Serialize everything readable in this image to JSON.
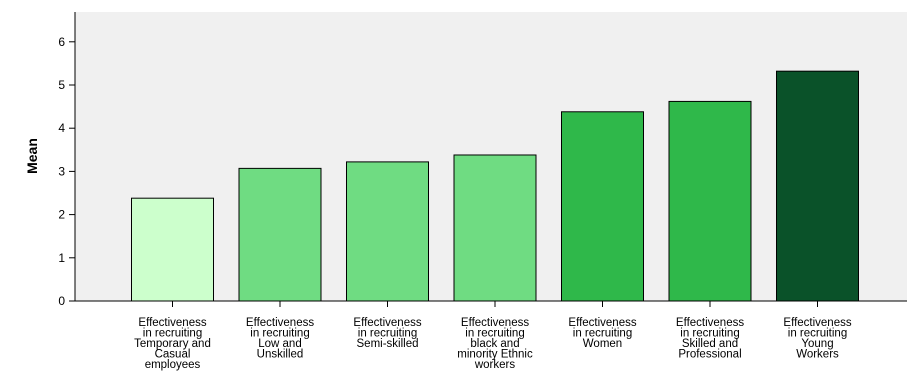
{
  "chart_data": {
    "type": "bar",
    "ylabel": "Mean",
    "xlabel": "",
    "ylim": [
      0,
      6.5
    ],
    "yticks": [
      0,
      1,
      2,
      3,
      4,
      5,
      6
    ],
    "grid": false,
    "plot_background": "#f0f0f0",
    "bar_stroke": "#000000",
    "categories": [
      "Effectiveness in recruiting Temporary and Casual employees",
      "Effectiveness in recruiting Low and Unskilled",
      "Effectiveness in recruiting Semi-skilled",
      "Effectiveness in recruiting black and minority Ethnic workers",
      "Effectiveness in recruiting Women",
      "Effectiveness in recruiting Skilled and Professional",
      "Effectiveness in recruiting Young Workers"
    ],
    "category_label_lines": [
      [
        "Effectiveness",
        "in recruiting",
        "Temporary and",
        "Casual",
        "employees"
      ],
      [
        "Effectiveness",
        "in recruiting",
        "Low and",
        "Unskilled"
      ],
      [
        "Effectiveness",
        "in recruiting",
        "Semi-skilled"
      ],
      [
        "Effectiveness",
        "in recruiting",
        "black and",
        "minority Ethnic",
        "workers"
      ],
      [
        "Effectiveness",
        "in recruiting",
        "Women"
      ],
      [
        "Effectiveness",
        "in recruiting",
        "Skilled and",
        "Professional"
      ],
      [
        "Effectiveness",
        "in recruiting",
        "Young",
        "Workers"
      ]
    ],
    "values": [
      2.38,
      3.07,
      3.22,
      3.38,
      4.38,
      4.62,
      5.32
    ],
    "colors": [
      "#ccffcc",
      "#6fdc82",
      "#6fdc82",
      "#6fdc82",
      "#2fb84a",
      "#2fb84a",
      "#0a5229"
    ]
  }
}
